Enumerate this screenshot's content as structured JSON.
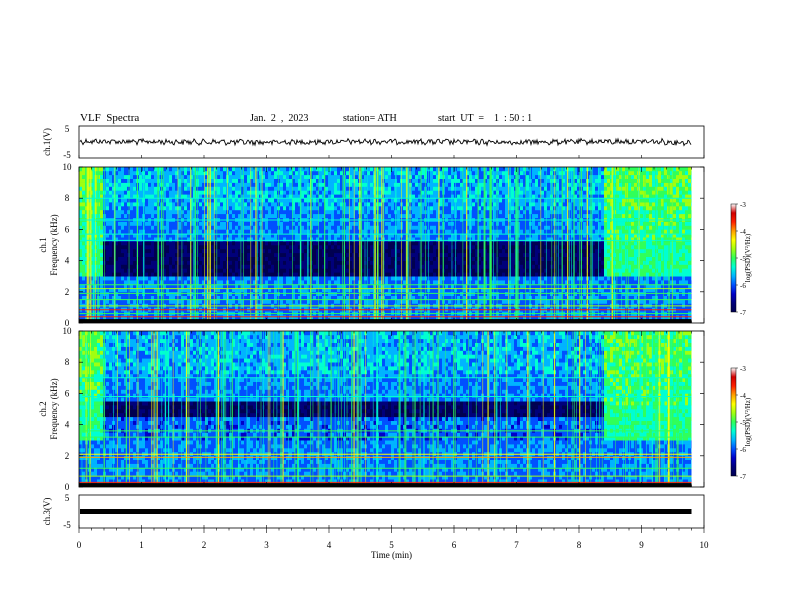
{
  "header": {
    "title": "VLF  Spectra",
    "date": "Jan.  2  ,  2023",
    "station": "station= ATH",
    "start": "start  UT  =    1  : 50 : 1"
  },
  "colors": {
    "cmap": [
      "#000050",
      "#00007a",
      "#0000c8",
      "#0050ff",
      "#00b4ff",
      "#00ffd2",
      "#30ff5a",
      "#a0ff10",
      "#ffff00",
      "#ffa000",
      "#ff2000",
      "#d00000",
      "#ffffff"
    ],
    "waveform": "#000000"
  },
  "chart_data": [
    {
      "type": "line",
      "name": "ch1-waveform",
      "ylabel": "ch.1(V)",
      "ylim": [
        -5,
        5
      ],
      "yticks": [
        "5",
        "-5"
      ],
      "x": [
        0,
        1,
        2,
        3,
        4,
        5,
        6,
        7,
        8,
        9,
        9.8
      ],
      "values": [
        0.3,
        0.1,
        0.0,
        -0.1,
        0.1,
        0.2,
        0.0,
        -0.1,
        0.1,
        0.2,
        -0.2
      ]
    },
    {
      "type": "heatmap",
      "name": "ch1-spectrogram",
      "ylabel": "ch.1\nFrequency  (kHz)",
      "ylim": [
        0,
        10
      ],
      "yticks": [
        "0",
        "2",
        "4",
        "6",
        "8",
        "10"
      ],
      "xlim": [
        0,
        10
      ],
      "data_end": 9.8,
      "colorbar": {
        "label": "log(PSD)(V²/Hz)",
        "range": [
          -7,
          -3
        ],
        "ticks": [
          "-3",
          "-4",
          "-5",
          "-6",
          "-7"
        ]
      },
      "features": {
        "dark_band_khz": [
          3.0,
          5.0
        ],
        "bright_segments_min": [
          [
            0,
            0.35
          ],
          [
            8.4,
            9.8
          ]
        ]
      }
    },
    {
      "type": "heatmap",
      "name": "ch2-spectrogram",
      "ylabel": "ch.2\nFrequency  (kHz)",
      "ylim": [
        0,
        10
      ],
      "yticks": [
        "0",
        "2",
        "4",
        "6",
        "8",
        "10"
      ],
      "xlim": [
        0,
        10
      ],
      "data_end": 9.8,
      "colorbar": {
        "label": "log(PSD)(V²/Hz)",
        "range": [
          -7,
          -3
        ],
        "ticks": [
          "-3",
          "-4",
          "-5",
          "-6",
          "-7"
        ]
      },
      "features": {
        "dark_band_khz": [
          4.3,
          5.3
        ],
        "bright_segments_min": [
          [
            0,
            0.35
          ],
          [
            8.4,
            9.8
          ]
        ]
      }
    },
    {
      "type": "line",
      "name": "ch3-waveform",
      "ylabel": "ch.3(V)",
      "ylim": [
        -5,
        5
      ],
      "yticks": [
        "5",
        "-5"
      ],
      "x": [
        0,
        9.8
      ],
      "values": [
        0,
        0
      ]
    }
  ],
  "xaxis": {
    "label": "Time  (min)",
    "ticks": [
      "0",
      "1",
      "2",
      "3",
      "4",
      "5",
      "6",
      "7",
      "8",
      "9",
      "10"
    ]
  }
}
